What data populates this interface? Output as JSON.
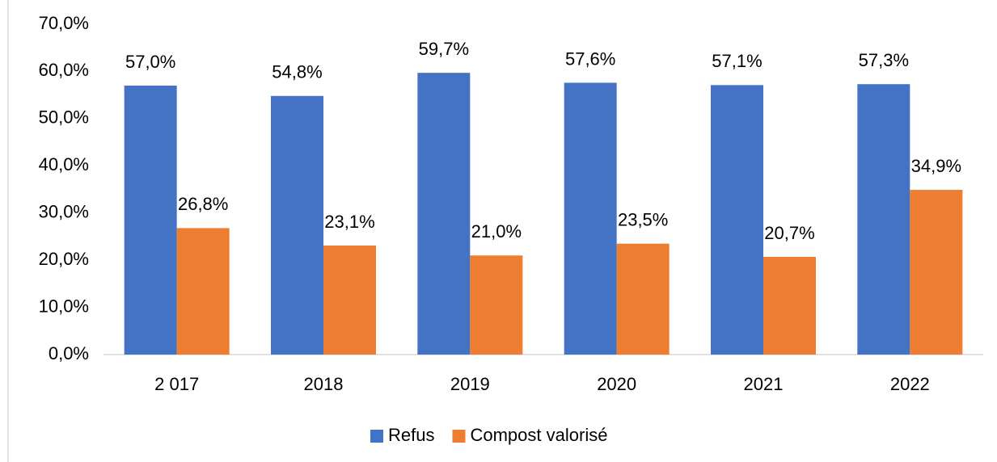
{
  "chart_data": {
    "type": "bar",
    "categories": [
      "2 017",
      "2018",
      "2019",
      "2020",
      "2021",
      "2022"
    ],
    "series": [
      {
        "name": "Refus",
        "color": "#4472c4",
        "values": [
          57.0,
          54.8,
          59.7,
          57.6,
          57.1,
          57.3
        ],
        "value_labels": [
          "57,0%",
          "54,8%",
          "59,7%",
          "57,6%",
          "57,1%",
          "57,3%"
        ]
      },
      {
        "name": "Compost valorisé",
        "color": "#ed7d31",
        "values": [
          26.8,
          23.1,
          21.0,
          23.5,
          20.7,
          34.9
        ],
        "value_labels": [
          "26,8%",
          "23,1%",
          "21,0%",
          "23,5%",
          "20,7%",
          "34,9%"
        ]
      }
    ],
    "ylim": [
      0,
      70
    ],
    "yticks": [
      {
        "value": 0,
        "label": "0,0%"
      },
      {
        "value": 10,
        "label": "10,0%"
      },
      {
        "value": 20,
        "label": "20,0%"
      },
      {
        "value": 30,
        "label": "30,0%"
      },
      {
        "value": 40,
        "label": "40,0%"
      },
      {
        "value": 50,
        "label": "50,0%"
      },
      {
        "value": 60,
        "label": "60,0%"
      },
      {
        "value": 70,
        "label": "70,0%"
      }
    ],
    "grid": false,
    "legend": "bottom"
  }
}
